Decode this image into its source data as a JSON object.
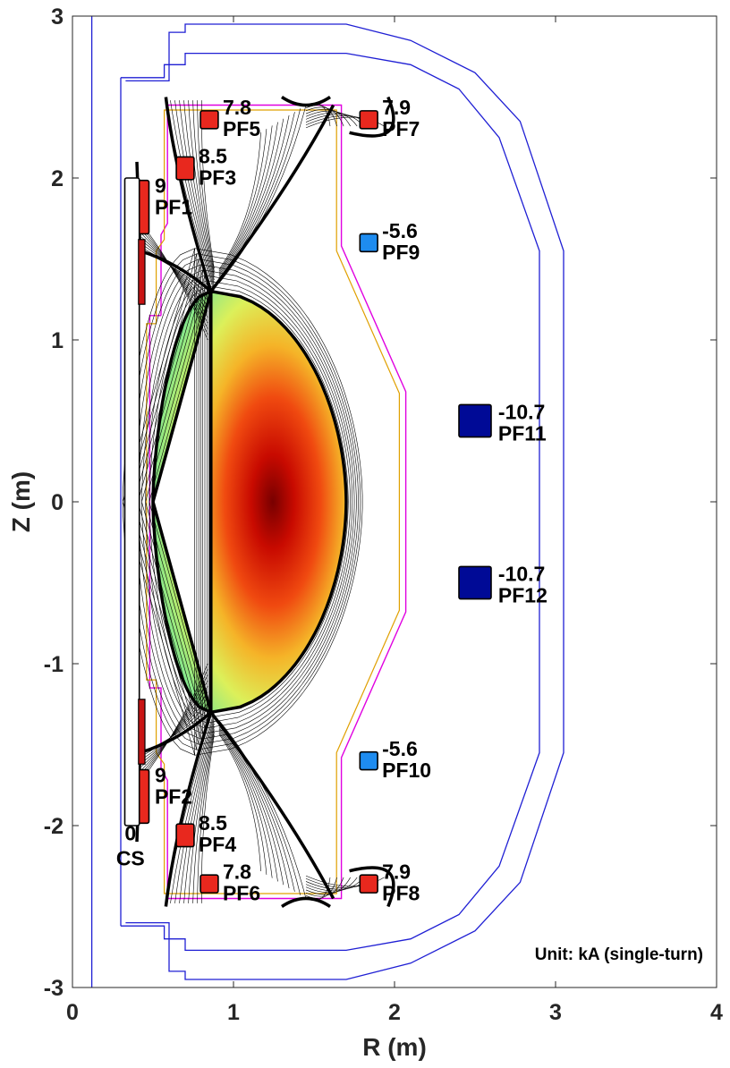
{
  "chart_data": {
    "type": "scatter",
    "xlabel": "R (m)",
    "ylabel": "Z (m)",
    "xlim": [
      0,
      4
    ],
    "ylim": [
      -3,
      3
    ],
    "xticks": [
      "0",
      "1",
      "2",
      "3",
      "4"
    ],
    "yticks": [
      "-3",
      "-2",
      "-1",
      "0",
      "1",
      "2",
      "3"
    ],
    "grid": false,
    "annotation": "Unit: kA (single-turn)",
    "coils": [
      {
        "name": "PF1",
        "current": "9",
        "r": 0.44,
        "z": 1.82,
        "w": 0.07,
        "h": 0.33,
        "color": "#e8281e"
      },
      {
        "name": "PF2",
        "current": "9",
        "r": 0.44,
        "z": -1.82,
        "w": 0.07,
        "h": 0.33,
        "color": "#e8281e"
      },
      {
        "name": "PF3",
        "current": "8.5",
        "r": 0.7,
        "z": 2.06,
        "w": 0.11,
        "h": 0.14,
        "color": "#e8281e"
      },
      {
        "name": "PF4",
        "current": "8.5",
        "r": 0.7,
        "z": -2.06,
        "w": 0.11,
        "h": 0.14,
        "color": "#e8281e"
      },
      {
        "name": "PF5",
        "current": "7.8",
        "r": 0.85,
        "z": 2.36,
        "w": 0.11,
        "h": 0.11,
        "color": "#e8281e"
      },
      {
        "name": "PF6",
        "current": "7.8",
        "r": 0.85,
        "z": -2.36,
        "w": 0.11,
        "h": 0.11,
        "color": "#e8281e"
      },
      {
        "name": "PF7",
        "current": "7.9",
        "r": 1.84,
        "z": 2.36,
        "w": 0.11,
        "h": 0.11,
        "color": "#e8281e"
      },
      {
        "name": "PF8",
        "current": "7.9",
        "r": 1.84,
        "z": -2.36,
        "w": 0.11,
        "h": 0.11,
        "color": "#e8281e"
      },
      {
        "name": "PF9",
        "current": "-5.6",
        "r": 1.84,
        "z": 1.6,
        "w": 0.11,
        "h": 0.11,
        "color": "#1e8cf0"
      },
      {
        "name": "PF10",
        "current": "-5.6",
        "r": 1.84,
        "z": -1.6,
        "w": 0.11,
        "h": 0.11,
        "color": "#1e8cf0"
      },
      {
        "name": "PF11",
        "current": "-10.7",
        "r": 2.5,
        "z": 0.5,
        "w": 0.2,
        "h": 0.2,
        "color": "#000a96"
      },
      {
        "name": "PF12",
        "current": "-10.7",
        "r": 2.5,
        "z": -0.5,
        "w": 0.2,
        "h": 0.2,
        "color": "#000a96"
      },
      {
        "name": "CS",
        "current": "0",
        "r": 0.37,
        "z": 0.0,
        "w": 0.09,
        "h": 4.0,
        "color": "#ffffff"
      }
    ],
    "plasma": {
      "r_inner": 0.5,
      "r_outer": 1.7,
      "z_top": 1.3,
      "r_xpoint": 0.86,
      "r_axis": 1.28,
      "z_axis": 0.0
    },
    "colors": {
      "vacuum_vessel": "#1f1fd4",
      "first_wall": "#e000e0",
      "limiter": "#e0a000",
      "flux_lines": "#000000"
    }
  }
}
